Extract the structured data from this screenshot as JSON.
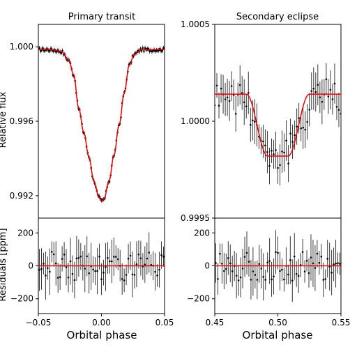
{
  "figure": {
    "left_title": "Primary transit",
    "right_title": "Secondary eclipse",
    "ylabel_flux": "Relative flux",
    "ylabel_residuals": "Residuals [ppm]",
    "xlabel": "Orbital phase"
  },
  "chart_data": [
    {
      "type": "scatter",
      "title": "Primary transit",
      "xlabel": "",
      "ylabel": "Relative flux",
      "xlim": [
        -0.05,
        0.05
      ],
      "ylim": [
        0.9908,
        1.0012
      ],
      "yticks": [
        "0.992",
        "0.996",
        "1.000"
      ],
      "ytick_values": [
        0.992,
        0.996,
        1.0
      ],
      "x": [
        -0.05,
        -0.044,
        -0.038,
        -0.032,
        -0.026,
        -0.022,
        -0.018,
        -0.014,
        -0.01,
        -0.006,
        -0.002,
        0.0,
        0.002,
        0.006,
        0.01,
        0.014,
        0.018,
        0.022,
        0.026,
        0.032,
        0.038,
        0.044,
        0.05
      ],
      "y": [
        0.99985,
        0.99985,
        0.99983,
        0.99975,
        0.9993,
        0.9985,
        0.9967,
        0.9954,
        0.9941,
        0.9928,
        0.9919,
        0.9917,
        0.9918,
        0.9928,
        0.9942,
        0.9958,
        0.9975,
        0.999,
        0.9996,
        0.99985,
        0.99983,
        0.99985,
        0.99985
      ],
      "model_color": "#e8000b",
      "point_color": "#000000",
      "grid": false
    },
    {
      "type": "scatter",
      "title": "Secondary eclipse",
      "xlabel": "",
      "ylabel": "",
      "xlim": [
        0.45,
        0.55
      ],
      "ylim": [
        0.9995,
        1.0005
      ],
      "yticks": [
        "0.9995",
        "1.0000",
        "1.0005"
      ],
      "ytick_values": [
        0.9995,
        1.0,
        1.0005
      ],
      "x": [
        0.45,
        0.455,
        0.46,
        0.465,
        0.47,
        0.475,
        0.48,
        0.485,
        0.49,
        0.495,
        0.5,
        0.505,
        0.51,
        0.515,
        0.52,
        0.525,
        0.53,
        0.535,
        0.54,
        0.545,
        0.55
      ],
      "y": [
        1.00015,
        1.00012,
        1.00018,
        1.0001,
        1.00016,
        1.0001,
        1.00006,
        0.99993,
        0.99988,
        0.99983,
        0.99982,
        0.99984,
        0.99986,
        0.99992,
        0.99998,
        1.00012,
        1.00018,
        1.00014,
        1.00016,
        1.00014,
        1.00012
      ],
      "model_color": "#e8000b",
      "point_color": "#000000",
      "grid": false
    },
    {
      "type": "scatter",
      "title": "",
      "xlabel": "Orbital phase",
      "ylabel": "Residuals [ppm]",
      "xlim": [
        -0.05,
        0.05
      ],
      "ylim": [
        -290,
        290
      ],
      "xticks": [
        "−0.05",
        "0.00",
        "0.05"
      ],
      "xtick_values": [
        -0.05,
        0.0,
        0.05
      ],
      "yticks": [
        "−200",
        "0",
        "200"
      ],
      "ytick_values": [
        -200,
        0,
        200
      ],
      "x": [
        -0.048,
        -0.044,
        -0.04,
        -0.036,
        -0.032,
        -0.028,
        -0.024,
        -0.02,
        -0.016,
        -0.012,
        -0.008,
        -0.004,
        0.0,
        0.004,
        0.008,
        0.012,
        0.016,
        0.02,
        0.024,
        0.028,
        0.032,
        0.036,
        0.04,
        0.044,
        0.048
      ],
      "y": [
        40,
        -30,
        60,
        -20,
        10,
        80,
        -50,
        30,
        -10,
        50,
        -60,
        20,
        0,
        -40,
        70,
        -20,
        30,
        -70,
        50,
        10,
        -30,
        60,
        -50,
        20,
        -10
      ],
      "model_color": "#e8000b",
      "grid": false
    },
    {
      "type": "scatter",
      "title": "",
      "xlabel": "Orbital phase",
      "ylabel": "",
      "xlim": [
        0.45,
        0.55
      ],
      "ylim": [
        -290,
        290
      ],
      "xticks": [
        "0.45",
        "0.50",
        "0.55"
      ],
      "xtick_values": [
        0.45,
        0.5,
        0.55
      ],
      "yticks": [
        "−200",
        "0",
        "200"
      ],
      "ytick_values": [
        -200,
        0,
        200
      ],
      "x": [
        0.452,
        0.456,
        0.46,
        0.464,
        0.468,
        0.472,
        0.476,
        0.48,
        0.484,
        0.488,
        0.492,
        0.496,
        0.5,
        0.504,
        0.508,
        0.512,
        0.516,
        0.52,
        0.524,
        0.528,
        0.532,
        0.536,
        0.54,
        0.544,
        0.548
      ],
      "y": [
        30,
        -60,
        50,
        -20,
        80,
        -40,
        10,
        -70,
        60,
        20,
        -30,
        40,
        -10,
        50,
        -50,
        30,
        -20,
        70,
        -40,
        10,
        60,
        -30,
        20,
        -60,
        40
      ],
      "model_color": "#e8000b",
      "grid": false
    }
  ]
}
